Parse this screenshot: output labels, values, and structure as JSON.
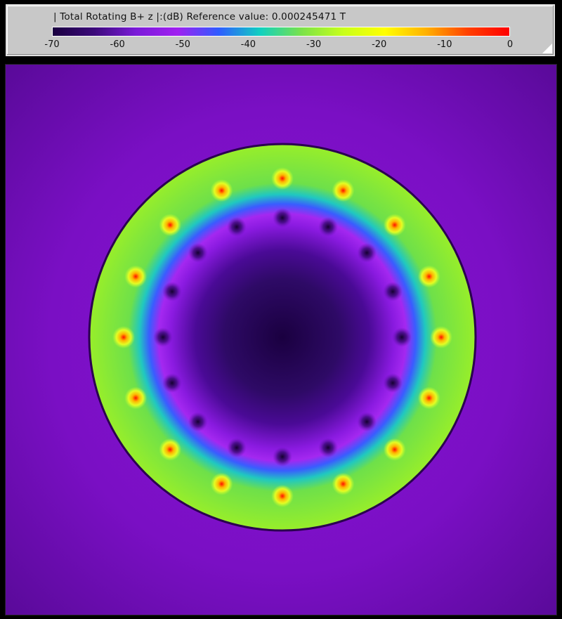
{
  "legend": {
    "title": "| Total Rotating B+ z |:(dB) Reference value: 0.000245471 T",
    "ticks": [
      "-70",
      "-60",
      "-50",
      "-40",
      "-30",
      "-20",
      "-10",
      "0"
    ],
    "colormap": [
      "#1a0040",
      "#3c0a7a",
      "#7a1ad8",
      "#a020f0",
      "#2f5cff",
      "#10d0c0",
      "#7be24a",
      "#c8ff1a",
      "#ffff00",
      "#ffb000",
      "#ff4000",
      "#ff0000"
    ]
  },
  "field": {
    "background_color": "#7a0fc7",
    "ring_color": "#88e838",
    "bore_color": "#5a0fa8",
    "hot_spot_count": 16,
    "dark_spot_count": 16
  }
}
